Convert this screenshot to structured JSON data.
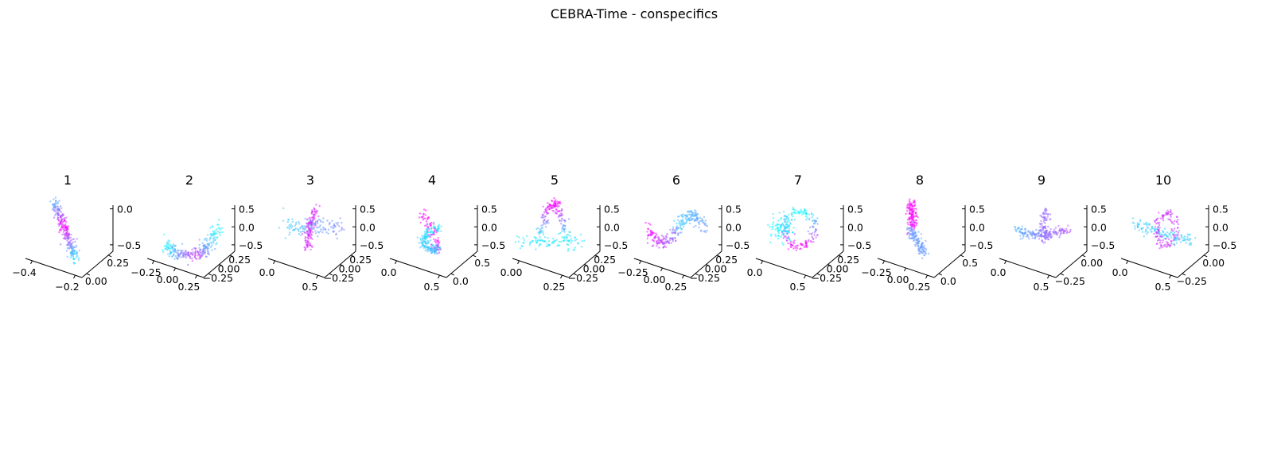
{
  "figure": {
    "title": "CEBRA-Time - conspecifics"
  },
  "colors": {
    "start": "#00ffff",
    "end": "#ff00ff",
    "axis": "#000000"
  },
  "chart_data": [
    {
      "type": "scatter",
      "title": "1",
      "shape": "streak",
      "x_ticks": [
        "−0.4",
        "−0.2"
      ],
      "y_ticks": [
        "0.25",
        "0.00"
      ],
      "z_ticks": [
        "0.0",
        "−0.5"
      ]
    },
    {
      "type": "scatter",
      "title": "2",
      "shape": "horseshoe",
      "x_ticks": [
        "−0.25",
        "0.00",
        "0.25"
      ],
      "y_ticks": [
        "0.25",
        "0.00",
        "−0.25"
      ],
      "z_ticks": [
        "0.5",
        "0.0",
        "−0.5"
      ]
    },
    {
      "type": "scatter",
      "title": "3",
      "shape": "cross",
      "x_ticks": [
        "0.0",
        "0.5"
      ],
      "y_ticks": [
        "0.25",
        "0.00",
        "−0.25"
      ],
      "z_ticks": [
        "0.5",
        "0.0",
        "−0.5"
      ]
    },
    {
      "type": "scatter",
      "title": "4",
      "shape": "loop-tall",
      "x_ticks": [
        "0.0",
        "0.5"
      ],
      "y_ticks": [
        "0.5",
        "0.0"
      ],
      "z_ticks": [
        "0.5",
        "0.0",
        "−0.5"
      ]
    },
    {
      "type": "scatter",
      "title": "5",
      "shape": "arch",
      "x_ticks": [
        "0.00",
        "0.25"
      ],
      "y_ticks": [
        "0.25",
        "0.00",
        "−0.25"
      ],
      "z_ticks": [
        "0.5",
        "0.0",
        "−0.5"
      ]
    },
    {
      "type": "scatter",
      "title": "6",
      "shape": "sine",
      "x_ticks": [
        "−0.25",
        "0.00",
        "0.25"
      ],
      "y_ticks": [
        "0.25",
        "0.00",
        "−0.25"
      ],
      "z_ticks": [
        "0.5",
        "0.0",
        "−0.5"
      ]
    },
    {
      "type": "scatter",
      "title": "7",
      "shape": "ring",
      "x_ticks": [
        "0.0",
        "0.5"
      ],
      "y_ticks": [
        "0.25",
        "0.00",
        "−0.25"
      ],
      "z_ticks": [
        "0.5",
        "0.0",
        "−0.5"
      ]
    },
    {
      "type": "scatter",
      "title": "8",
      "shape": "spike",
      "x_ticks": [
        "−0.25",
        "0.00",
        "0.25"
      ],
      "y_ticks": [
        "0.5",
        "0.0"
      ],
      "z_ticks": [
        "0.5",
        "0.0",
        "−0.5"
      ]
    },
    {
      "type": "scatter",
      "title": "9",
      "shape": "bowl",
      "x_ticks": [
        "0.0",
        "0.5"
      ],
      "y_ticks": [
        "0.00",
        "−0.25"
      ],
      "z_ticks": [
        "0.5",
        "0.0",
        "−0.5"
      ]
    },
    {
      "type": "scatter",
      "title": "10",
      "shape": "loop-wide",
      "x_ticks": [
        "0.0",
        "0.5"
      ],
      "y_ticks": [
        "0.00",
        "−0.25"
      ],
      "z_ticks": [
        "0.5",
        "0.0",
        "−0.5"
      ]
    }
  ]
}
